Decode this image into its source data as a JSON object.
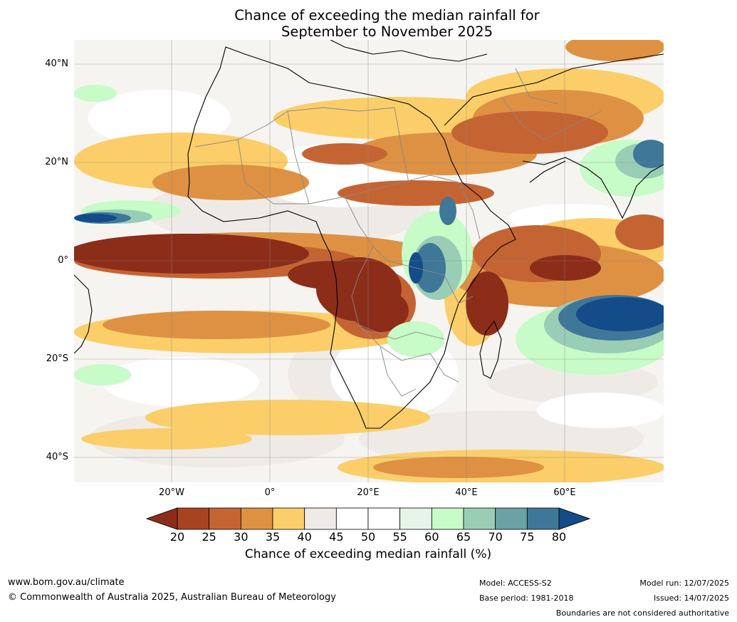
{
  "title_line1": "Chance of exceeding the median rainfall for",
  "title_line2": "September to November 2025",
  "lat_labels": [
    "40°N",
    "20°N",
    "0°",
    "20°S",
    "40°S"
  ],
  "lon_labels": [
    "20°W",
    "0°",
    "20°E",
    "40°E",
    "60°E"
  ],
  "colorbar": {
    "ticks": [
      "20",
      "25",
      "30",
      "35",
      "40",
      "45",
      "50",
      "55",
      "60",
      "65",
      "70",
      "75",
      "80"
    ],
    "label": "Chance of exceeding median rainfall (%)",
    "colors": [
      "#8c2d1a",
      "#a8431f",
      "#c56433",
      "#de9143",
      "#fbce69",
      "#eeebe7",
      "#ffffff",
      "#ffffff",
      "#e6f5e8",
      "#c7fbc7",
      "#99cdb6",
      "#6aa2a5",
      "#3f7799",
      "#134c88"
    ]
  },
  "footer": {
    "website": "www.bom.gov.au/climate",
    "copyright": "© Commonwealth of Australia 2025, Australian Bureau of Meteorology",
    "model": "Model: ACCESS-S2",
    "base_period": "Base period: 1981-2018",
    "model_run": "Model run: 12/07/2025",
    "issued": "Issued: 14/07/2025",
    "disclaimer": "Boundaries are not considered authoritative"
  }
}
